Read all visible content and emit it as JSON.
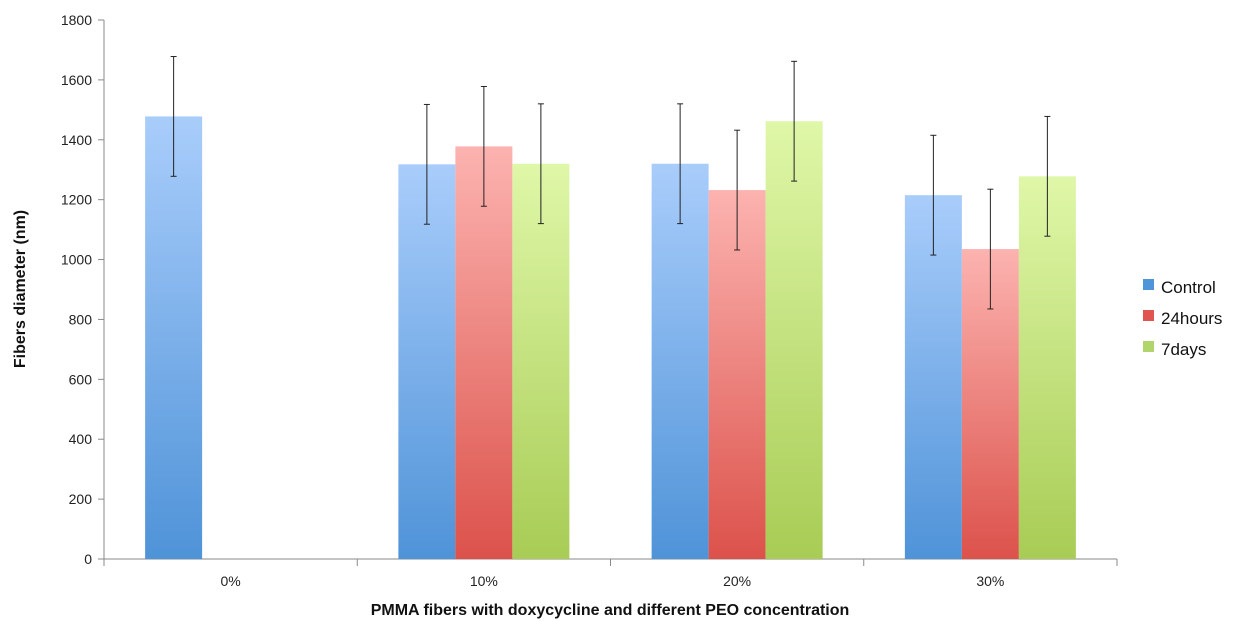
{
  "chart_data": {
    "type": "bar",
    "title": "",
    "xlabel": "PMMA fibers with doxycycline and different PEO concentration",
    "ylabel": "Fibers diameter (nm)",
    "categories": [
      "0%",
      "10%",
      "20%",
      "30%"
    ],
    "ylim": [
      0,
      1800
    ],
    "yticks": [
      0,
      200,
      400,
      600,
      800,
      1000,
      1200,
      1400,
      1600,
      1800
    ],
    "grid": false,
    "legend_position": "right",
    "series": [
      {
        "name": "Control",
        "color_top": "#a9cdfb",
        "color_bottom": "#4f93d8",
        "legend_color": "#4e95d9",
        "values": [
          1478,
          1318,
          1320,
          1215
        ],
        "errors": [
          200,
          200,
          200,
          200
        ]
      },
      {
        "name": "24hours",
        "color_top": "#fcb3b0",
        "color_bottom": "#dc524b",
        "legend_color": "#e05550",
        "values": [
          null,
          1378,
          1232,
          1035
        ],
        "errors": [
          null,
          200,
          200,
          200
        ]
      },
      {
        "name": "7days",
        "color_top": "#dff7a8",
        "color_bottom": "#a8cc55",
        "legend_color": "#b0d56a",
        "values": [
          null,
          1320,
          1462,
          1278
        ],
        "errors": [
          null,
          200,
          200,
          200
        ]
      }
    ]
  }
}
